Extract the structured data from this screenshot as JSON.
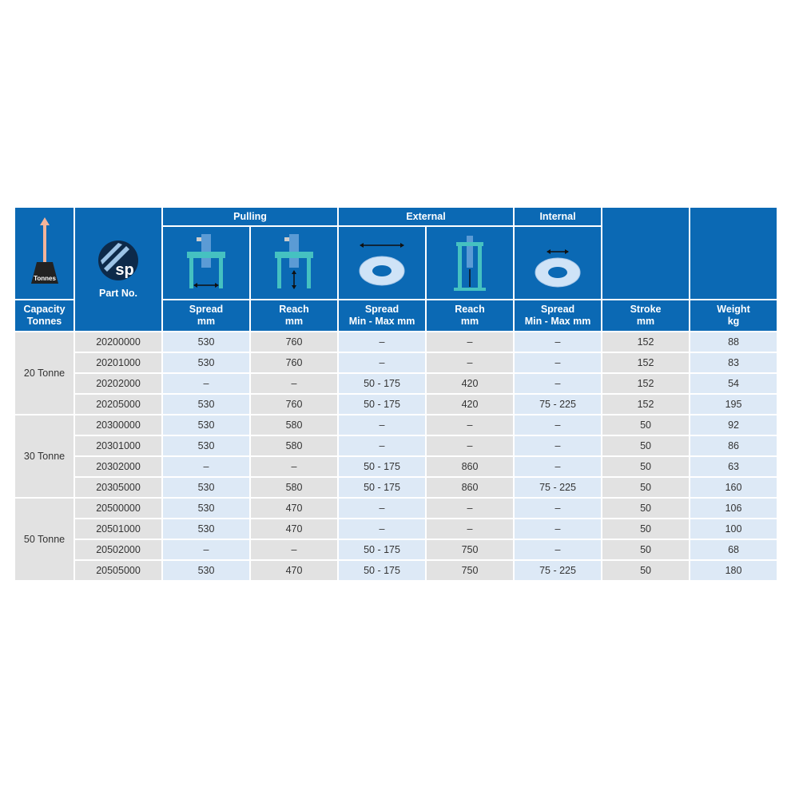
{
  "header": {
    "capacity_label": "Capacity Tonnes",
    "capacity_icon_text": "Tonnes",
    "logo_text": "sp",
    "part_no_label": "Part No.",
    "groups": {
      "pulling": "Pulling",
      "external": "External",
      "internal": "Internal"
    },
    "columns": [
      {
        "line1": "Spread",
        "line2": "mm"
      },
      {
        "line1": "Reach",
        "line2": "mm"
      },
      {
        "line1": "Spread",
        "line2": "Min - Max mm"
      },
      {
        "line1": "Reach",
        "line2": "mm"
      },
      {
        "line1": "Spread",
        "line2": "Min - Max mm"
      },
      {
        "line1": "Stroke",
        "line2": "mm"
      },
      {
        "line1": "Weight",
        "line2": "kg"
      }
    ]
  },
  "colors": {
    "header_blue": "#0b69b4",
    "cell_gray": "#e2e2e2",
    "cell_blue": "#dde9f6"
  },
  "groups": [
    {
      "capacity": "20 Tonne",
      "rows": [
        [
          "20200000",
          "530",
          "760",
          "–",
          "–",
          "–",
          "152",
          "88"
        ],
        [
          "20201000",
          "530",
          "760",
          "–",
          "–",
          "–",
          "152",
          "83"
        ],
        [
          "20202000",
          "–",
          "–",
          "50 - 175",
          "420",
          "–",
          "152",
          "54"
        ],
        [
          "20205000",
          "530",
          "760",
          "50 - 175",
          "420",
          "75 - 225",
          "152",
          "195"
        ]
      ]
    },
    {
      "capacity": "30 Tonne",
      "rows": [
        [
          "20300000",
          "530",
          "580",
          "–",
          "–",
          "–",
          "50",
          "92"
        ],
        [
          "20301000",
          "530",
          "580",
          "–",
          "–",
          "–",
          "50",
          "86"
        ],
        [
          "20302000",
          "–",
          "–",
          "50 - 175",
          "860",
          "–",
          "50",
          "63"
        ],
        [
          "20305000",
          "530",
          "580",
          "50 - 175",
          "860",
          "75 - 225",
          "50",
          "160"
        ]
      ]
    },
    {
      "capacity": "50 Tonne",
      "rows": [
        [
          "20500000",
          "530",
          "470",
          "–",
          "–",
          "–",
          "50",
          "106"
        ],
        [
          "20501000",
          "530",
          "470",
          "–",
          "–",
          "–",
          "50",
          "100"
        ],
        [
          "20502000",
          "–",
          "–",
          "50 - 175",
          "750",
          "–",
          "50",
          "68"
        ],
        [
          "20505000",
          "530",
          "470",
          "50 - 175",
          "750",
          "75 - 225",
          "50",
          "180"
        ]
      ]
    }
  ]
}
